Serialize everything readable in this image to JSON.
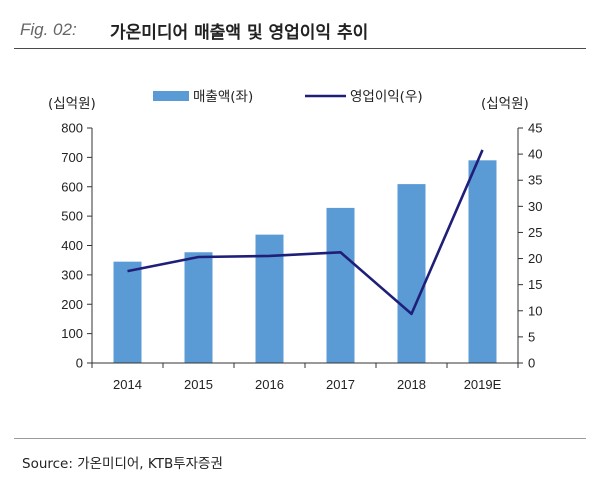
{
  "figure": {
    "number": "Fig. 02:",
    "title": "가온미디어 매출액 및 영업이익 추이"
  },
  "source": "Source:  가온미디어, KTB투자증권",
  "chart_data": {
    "type": "bar+line",
    "categories": [
      "2014",
      "2015",
      "2016",
      "2017",
      "2018",
      "2019E"
    ],
    "series": [
      {
        "name": "매출액(좌)",
        "type": "bar",
        "axis": "left",
        "color": "#5b9bd5",
        "values": [
          345,
          377,
          437,
          528,
          609,
          690
        ]
      },
      {
        "name": "영업이익(우)",
        "type": "line",
        "axis": "right",
        "color": "#1f1f7a",
        "values": [
          17.6,
          20.3,
          20.5,
          21.2,
          9.4,
          40.8
        ]
      }
    ],
    "left_axis": {
      "unit_label": "(십억원)",
      "ylim": [
        0,
        800
      ],
      "ticks": [
        0,
        100,
        200,
        300,
        400,
        500,
        600,
        700,
        800
      ]
    },
    "right_axis": {
      "unit_label": "(십억원)",
      "ylim": [
        0,
        45
      ],
      "ticks": [
        0,
        5,
        10,
        15,
        20,
        25,
        30,
        35,
        40,
        45
      ]
    },
    "legend_placement": "top-center",
    "grid": false
  }
}
